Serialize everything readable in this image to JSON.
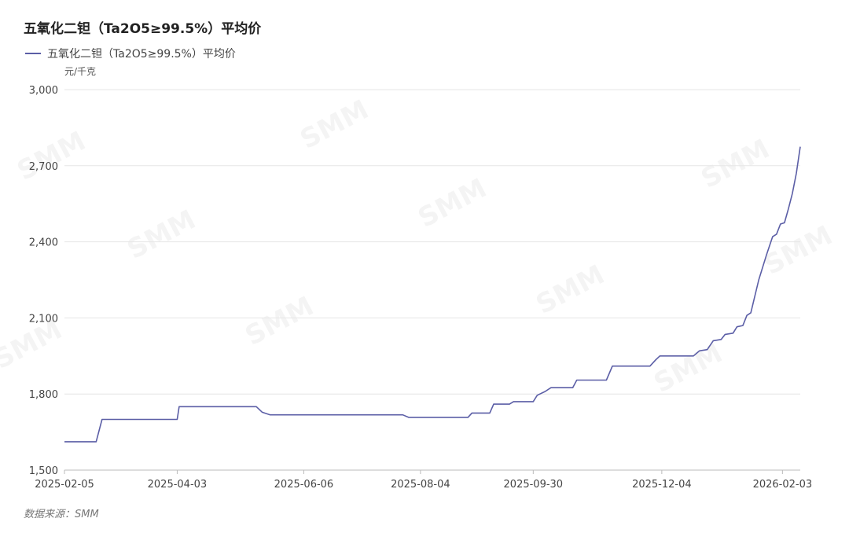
{
  "chart_data": {
    "type": "line",
    "title": "五氧化二钽（Ta2O5≥99.5%）平均价",
    "ylabel": "元/千克",
    "xlabel": "",
    "ylim": [
      1500,
      3000
    ],
    "yticks": [
      "1,500",
      "1,800",
      "2,100",
      "2,400",
      "2,700",
      "3,000"
    ],
    "xticks": [
      {
        "date": "2025-02-05",
        "label": "2025-02-05"
      },
      {
        "date": "2025-04-03",
        "label": "2025-04-03"
      },
      {
        "date": "2025-06-06",
        "label": "2025-06-06"
      },
      {
        "date": "2025-08-04",
        "label": "2025-08-04"
      },
      {
        "date": "2025-09-30",
        "label": "2025-09-30"
      },
      {
        "date": "2025-12-04",
        "label": "2025-12-04"
      },
      {
        "date": "2026-02-03",
        "label": "2026-02-03"
      }
    ],
    "x_range": [
      "2025-02-05",
      "2026-02-12"
    ],
    "grid": true,
    "legend": "top-left",
    "series": [
      {
        "name": "五氧化二钽（Ta2O5≥99.5%）平均价",
        "color": "#5b5ea6",
        "points": [
          [
            "2025-02-05",
            1612
          ],
          [
            "2025-02-21",
            1612
          ],
          [
            "2025-02-24",
            1700
          ],
          [
            "2025-04-03",
            1700
          ],
          [
            "2025-04-04",
            1750
          ],
          [
            "2025-05-13",
            1750
          ],
          [
            "2025-05-16",
            1728
          ],
          [
            "2025-05-20",
            1718
          ],
          [
            "2025-07-26",
            1718
          ],
          [
            "2025-07-29",
            1708
          ],
          [
            "2025-08-28",
            1708
          ],
          [
            "2025-08-30",
            1725
          ],
          [
            "2025-09-08",
            1725
          ],
          [
            "2025-09-10",
            1760
          ],
          [
            "2025-09-18",
            1760
          ],
          [
            "2025-09-20",
            1770
          ],
          [
            "2025-09-30",
            1770
          ],
          [
            "2025-10-02",
            1795
          ],
          [
            "2025-10-06",
            1810
          ],
          [
            "2025-10-09",
            1825
          ],
          [
            "2025-10-20",
            1825
          ],
          [
            "2025-10-22",
            1855
          ],
          [
            "2025-11-06",
            1855
          ],
          [
            "2025-11-09",
            1910
          ],
          [
            "2025-11-28",
            1910
          ],
          [
            "2025-12-01",
            1935
          ],
          [
            "2025-12-03",
            1950
          ],
          [
            "2025-12-20",
            1950
          ],
          [
            "2025-12-23",
            1970
          ],
          [
            "2025-12-27",
            1975
          ],
          [
            "2025-12-30",
            2010
          ],
          [
            "2026-01-03",
            2015
          ],
          [
            "2026-01-05",
            2035
          ],
          [
            "2026-01-09",
            2040
          ],
          [
            "2026-01-11",
            2065
          ],
          [
            "2026-01-14",
            2070
          ],
          [
            "2026-01-16",
            2110
          ],
          [
            "2026-01-18",
            2120
          ],
          [
            "2026-01-22",
            2250
          ],
          [
            "2026-01-26",
            2350
          ],
          [
            "2026-01-29",
            2420
          ],
          [
            "2026-01-31",
            2430
          ],
          [
            "2026-02-02",
            2470
          ],
          [
            "2026-02-04",
            2475
          ],
          [
            "2026-02-06",
            2530
          ],
          [
            "2026-02-08",
            2590
          ],
          [
            "2026-02-10",
            2670
          ],
          [
            "2026-02-12",
            2775
          ]
        ]
      }
    ]
  },
  "source": "数据来源：SMM",
  "watermark": "SMM"
}
